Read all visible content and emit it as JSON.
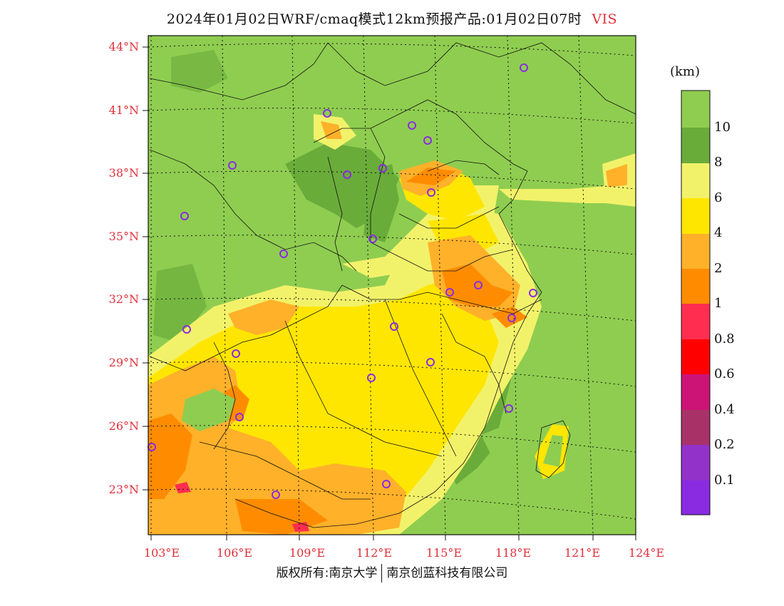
{
  "header": {
    "title": "2024年01月02日WRF/cmaq模式12km预报产品:01月02日07时",
    "variable": "VIS"
  },
  "map": {
    "lat_labels": [
      "44°N",
      "41°N",
      "38°N",
      "35°N",
      "32°N",
      "29°N",
      "26°N",
      "23°N"
    ],
    "lon_labels": [
      "103°E",
      "106°E",
      "109°E",
      "112°E",
      "115°E",
      "118°E",
      "121°E",
      "124°E"
    ],
    "station_marker": "circle-icon"
  },
  "colorbar": {
    "unit": "(km)",
    "labels": [
      "10",
      "8",
      "6",
      "4",
      "2",
      "1",
      "0.8",
      "0.6",
      "0.4",
      "0.2",
      "0.1"
    ],
    "colors": [
      "#8fcd50",
      "#6aac3a",
      "#f2f26a",
      "#ffe600",
      "#ffb12a",
      "#ff8c00",
      "#ff2e50",
      "#ff0000",
      "#cc1477",
      "#a83268",
      "#9232c8",
      "#8a2be2"
    ]
  },
  "footer": {
    "copyright": "版权所有:南京大学",
    "company": "南京创蓝科技有限公司"
  }
}
